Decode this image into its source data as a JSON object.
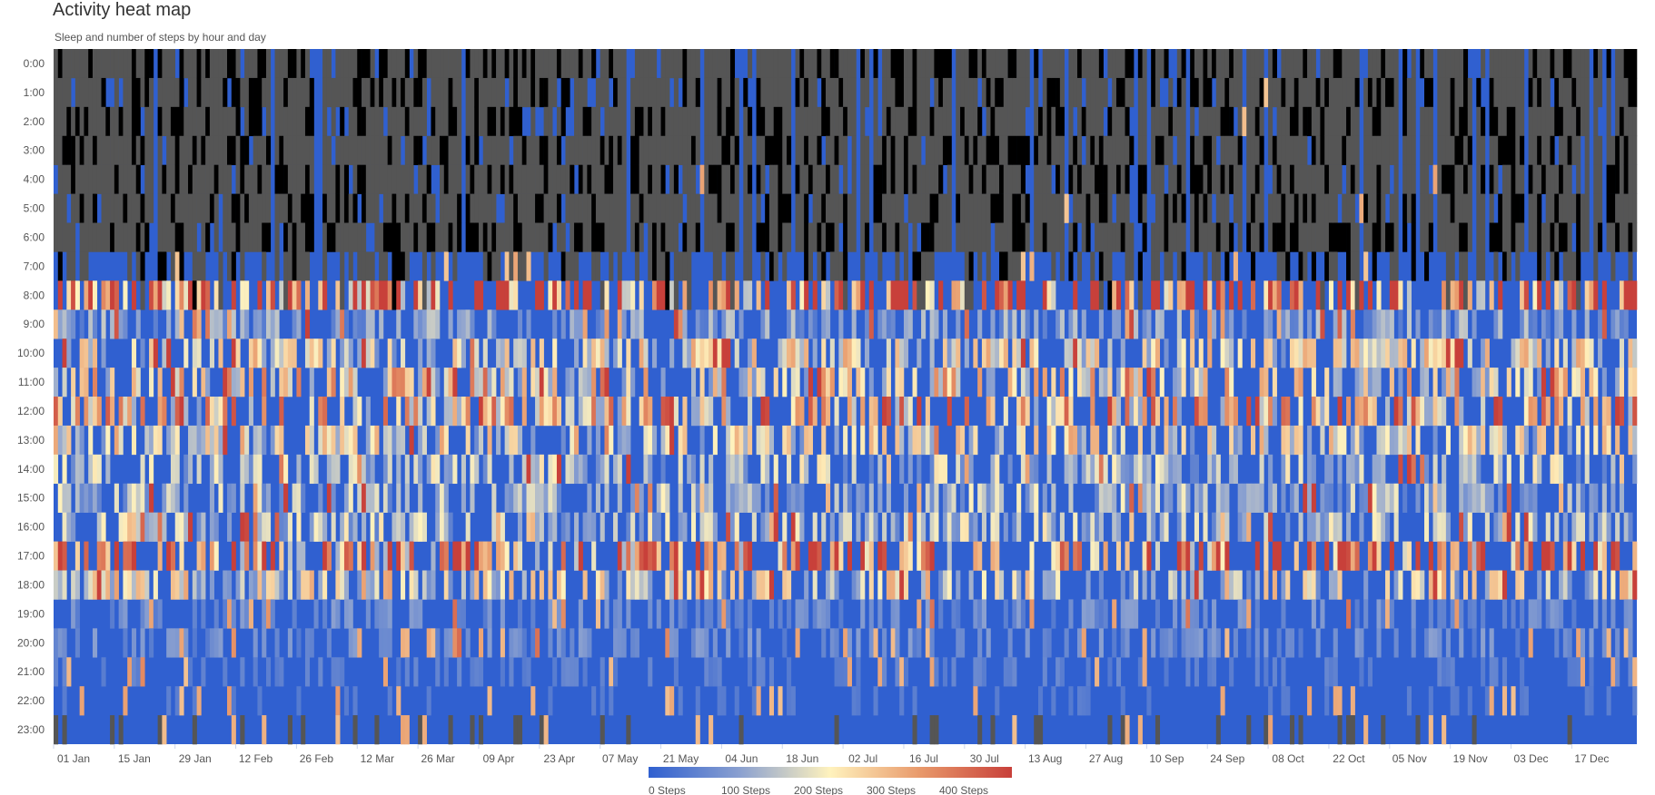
{
  "chart_data": {
    "type": "heatmap",
    "title": "Activity heat map",
    "subtitle": "Sleep and number of steps by hour and day",
    "y_categories": [
      "0:00",
      "1:00",
      "2:00",
      "3:00",
      "4:00",
      "5:00",
      "6:00",
      "7:00",
      "8:00",
      "9:00",
      "10:00",
      "11:00",
      "12:00",
      "13:00",
      "14:00",
      "15:00",
      "16:00",
      "17:00",
      "18:00",
      "19:00",
      "20:00",
      "21:00",
      "22:00",
      "23:00"
    ],
    "x_range": [
      "2019-01-01",
      "2019-12-31"
    ],
    "x_tick_labels": [
      "01 Jan",
      "15 Jan",
      "29 Jan",
      "12 Feb",
      "26 Feb",
      "12 Mar",
      "26 Mar",
      "09 Apr",
      "23 Apr",
      "07 May",
      "21 May",
      "04 Jun",
      "18 Jun",
      "02 Jul",
      "16 Jul",
      "30 Jul",
      "13 Aug",
      "27 Aug",
      "10 Sep",
      "24 Sep",
      "08 Oct",
      "22 Oct",
      "05 Nov",
      "19 Nov",
      "03 Dec",
      "17 Dec"
    ],
    "days": 365,
    "color_scale": {
      "min": 0,
      "max": 500,
      "stops": [
        {
          "value": 0,
          "color": "#3060d0"
        },
        {
          "value": 100,
          "color": "#8aa0d0"
        },
        {
          "value": 200,
          "color": "#fff2bd"
        },
        {
          "value": 300,
          "color": "#e8986a"
        },
        {
          "value": 400,
          "color": "#c8403a"
        }
      ],
      "labels": [
        "0 Steps",
        "100 Steps",
        "200 Steps",
        "300 Steps",
        "400 Steps"
      ]
    },
    "sleep_colors": {
      "light": "#555555",
      "deep": "#000000"
    },
    "hourly_profile": {
      "sleep_hours": [
        0,
        1,
        2,
        3,
        4,
        5,
        6,
        7
      ],
      "active_peaks": {
        "8": 320,
        "9": 90,
        "10": 170,
        "11": 200,
        "12": 230,
        "13": 170,
        "14": 130,
        "15": 120,
        "16": 130,
        "17": 290,
        "18": 170,
        "19": 60,
        "20": 60,
        "21": 40,
        "22": 30,
        "23": 10
      }
    }
  }
}
